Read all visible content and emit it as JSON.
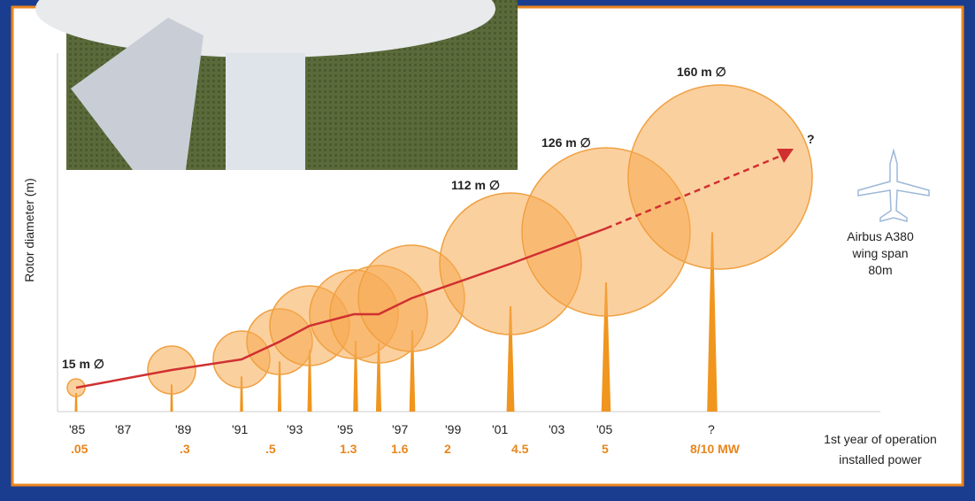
{
  "axis_label": "Rotor diameter (m)",
  "years": [
    "'85",
    "'87",
    "'89",
    "'91",
    "'93",
    "'95",
    "'97",
    "'99",
    "'01",
    "'03",
    "'05",
    "?"
  ],
  "powers": [
    ".05",
    ".3",
    ".5",
    "1.3",
    "1.6",
    "2",
    "4.5",
    "5",
    "8/10 MW"
  ],
  "diameter_labels": [
    "15 m ∅",
    "112 m ∅",
    "126 m ∅",
    "160 m ∅"
  ],
  "future_mark": "?",
  "comparison": [
    "Airbus A380",
    "wing span",
    "80m"
  ],
  "legend": [
    "1st year of operation",
    "installed power"
  ]
}
